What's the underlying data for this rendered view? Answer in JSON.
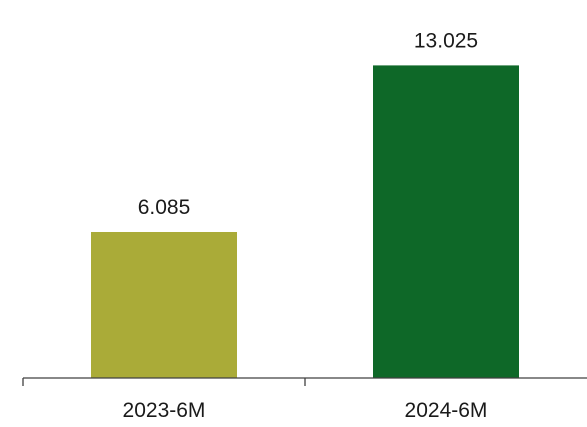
{
  "chart_data": {
    "type": "bar",
    "categories": [
      "2023-6M",
      "2024-6M"
    ],
    "values": [
      6.085,
      13.025
    ],
    "data_labels": [
      "6.085",
      "13.025"
    ],
    "bar_colors": [
      "#aaab38",
      "#0e6828"
    ],
    "title": "",
    "xlabel": "",
    "ylabel": "",
    "ylim": [
      0,
      14.5
    ],
    "grid": false,
    "legend": "none"
  }
}
